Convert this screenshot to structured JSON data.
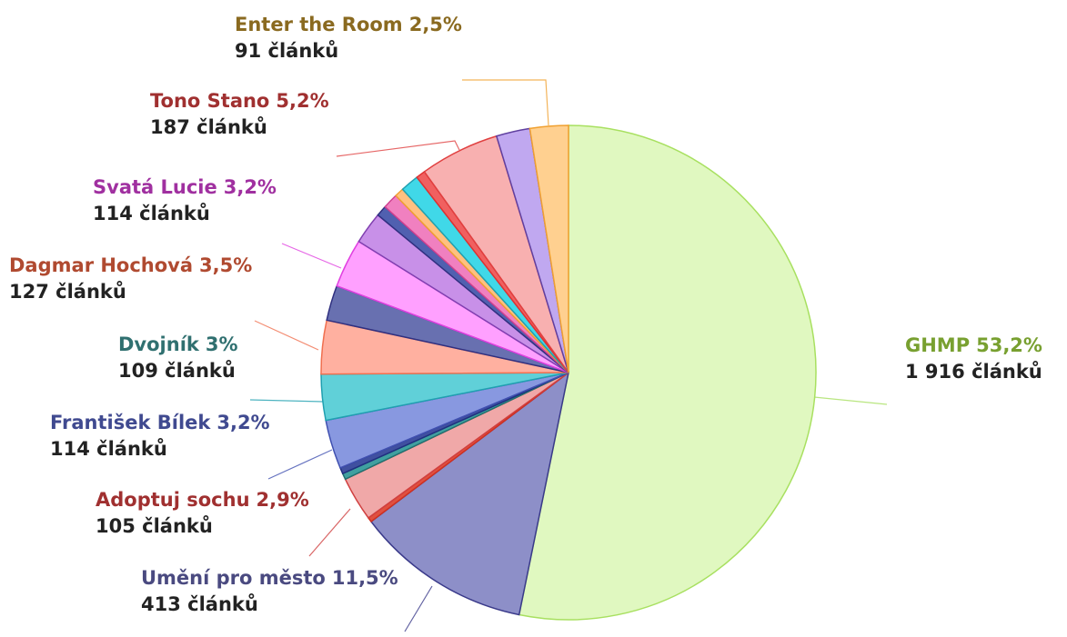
{
  "chart_data": {
    "type": "pie",
    "categories": [
      "GHMP",
      "Umění pro město",
      null,
      "Adoptuj sochu",
      null,
      null,
      "František Bílek",
      "Dvojník",
      "Dagmar Hochová",
      null,
      "Svatá Lucie",
      null,
      null,
      null,
      null,
      null,
      null,
      "Tono Stano",
      null,
      "Enter the Room"
    ],
    "values": [
      53.2,
      11.5,
      0.3,
      2.9,
      0.4,
      0.4,
      3.2,
      3,
      3.5,
      2.3,
      3.2,
      2.1,
      0.7,
      1.0,
      0.6,
      1.2,
      0.6,
      5.2,
      2.2,
      2.5
    ],
    "value_labels": [
      "53,2%",
      "11,5%",
      null,
      "2,9%",
      null,
      null,
      "3,2%",
      "3%",
      "3,5%",
      null,
      "3,2%",
      null,
      null,
      null,
      null,
      null,
      null,
      "5,2%",
      null,
      "2,5%"
    ],
    "count_labels": [
      "1 916 článků",
      "413 článků",
      null,
      "105 článků",
      null,
      null,
      "114 článků",
      "109 článků",
      "127 článků",
      null,
      "114 článků",
      null,
      null,
      null,
      null,
      null,
      null,
      "187 článků",
      null,
      "91 článků"
    ],
    "colors": [
      "#e0f8c0",
      "#8d8fc8",
      "#e05040",
      "#f0a8a8",
      "#40a0a0",
      "#4050a0",
      "#8898e0",
      "#60d0d8",
      "#ffb0a0",
      "#6870b0",
      "#ffa0ff",
      "#c890e8",
      "#5060b0",
      "#f080c0",
      "#ffc080",
      "#40d8e8",
      "#f06060",
      "#f8b0b0",
      "#c0a8f0",
      "#ffd090"
    ],
    "label_colors": [
      "#78a030",
      "#4a4a80",
      null,
      "#a03030",
      null,
      null,
      "#404a90",
      "#307070",
      "#b04a30",
      null,
      "#a030a0",
      null,
      null,
      null,
      null,
      null,
      null,
      "#a03030",
      null,
      "#8a6a20"
    ]
  }
}
